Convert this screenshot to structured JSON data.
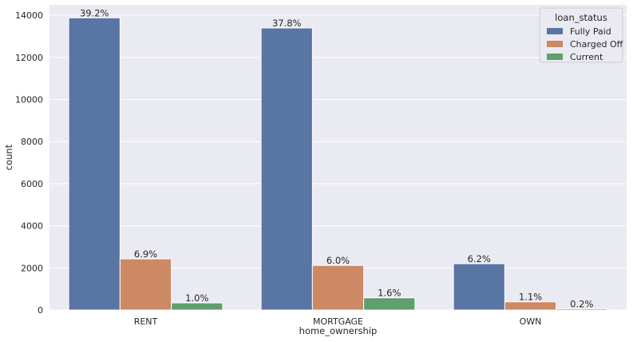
{
  "chart_data": {
    "type": "bar",
    "title": "",
    "xlabel": "home_ownership",
    "ylabel": "count",
    "ylim": [
      0,
      14500
    ],
    "yticks": [
      0,
      2000,
      4000,
      6000,
      8000,
      10000,
      12000,
      14000
    ],
    "grid": true,
    "legend_position": "top-right",
    "legend_title": "loan_status",
    "categories": [
      "RENT",
      "MORTGAGE",
      "OWN"
    ],
    "series": [
      {
        "name": "Fully Paid",
        "color": "#5875a4",
        "values": [
          13880,
          13400,
          2200
        ],
        "labels": [
          "39.2%",
          "37.8%",
          "6.2%"
        ]
      },
      {
        "name": "Charged Off",
        "color": "#cc8963",
        "values": [
          2430,
          2120,
          390
        ],
        "labels": [
          "6.9%",
          "6.0%",
          "1.1%"
        ]
      },
      {
        "name": "Current",
        "color": "#5f9e6e",
        "values": [
          340,
          580,
          60
        ],
        "labels": [
          "1.0%",
          "1.6%",
          "0.2%"
        ]
      }
    ]
  }
}
